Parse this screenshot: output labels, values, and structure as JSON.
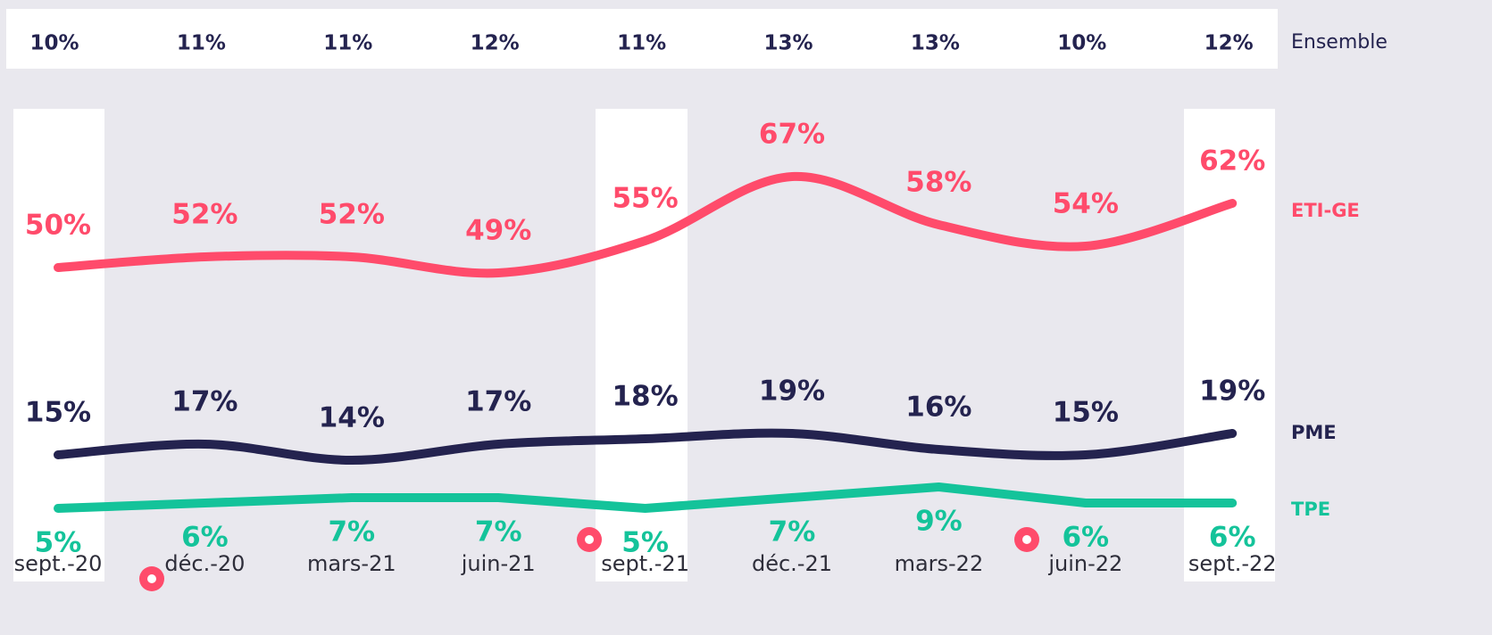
{
  "chart_data": {
    "type": "line",
    "categories": [
      "sept.-20",
      "déc.-20",
      "mars-21",
      "juin-21",
      "sept.-21",
      "déc.-21",
      "mars-22",
      "juin-22",
      "sept.-22"
    ],
    "ylim": [
      0,
      70
    ],
    "ensemble": {
      "name": "Ensemble",
      "values": [
        10,
        11,
        11,
        12,
        11,
        13,
        13,
        10,
        12
      ],
      "value_labels": [
        "10%",
        "11%",
        "11%",
        "12%",
        "11%",
        "13%",
        "13%",
        "10%",
        "12%"
      ]
    },
    "series": [
      {
        "name": "ETI-GE",
        "color": "#ff4b6b",
        "smooth": true,
        "values": [
          50,
          52,
          52,
          49,
          55,
          67,
          58,
          54,
          62
        ],
        "value_labels": [
          "50%",
          "52%",
          "52%",
          "49%",
          "55%",
          "67%",
          "58%",
          "54%",
          "62%"
        ]
      },
      {
        "name": "PME",
        "color": "#24234f",
        "smooth": true,
        "values": [
          15,
          17,
          14,
          17,
          18,
          19,
          16,
          15,
          19
        ],
        "value_labels": [
          "15%",
          "17%",
          "14%",
          "17%",
          "18%",
          "19%",
          "16%",
          "15%",
          "19%"
        ]
      },
      {
        "name": "TPE",
        "color": "#14c39a",
        "smooth": false,
        "values": [
          5,
          6,
          7,
          7,
          5,
          7,
          9,
          6,
          6
        ],
        "value_labels": [
          "5%",
          "6%",
          "7%",
          "7%",
          "5%",
          "7%",
          "9%",
          "6%",
          "6%"
        ]
      }
    ]
  }
}
